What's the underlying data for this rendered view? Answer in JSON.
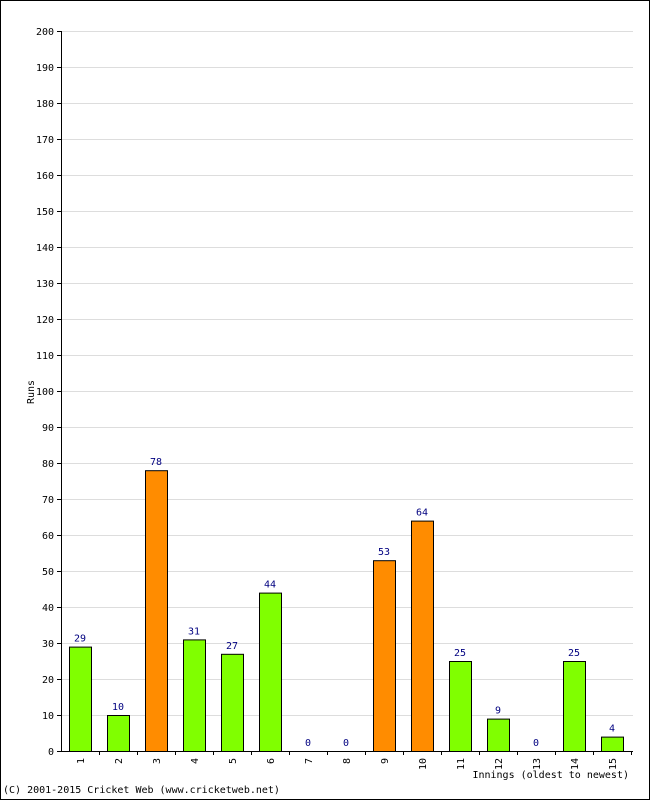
{
  "chart_data": {
    "type": "bar",
    "xlabel": "Innings (oldest to newest)",
    "ylabel": "Runs",
    "ylim": [
      0,
      200
    ],
    "ytick_step": 10,
    "categories": [
      "1",
      "2",
      "3",
      "4",
      "5",
      "6",
      "7",
      "8",
      "9",
      "10",
      "11",
      "12",
      "13",
      "14",
      "15"
    ],
    "values": [
      29,
      10,
      78,
      31,
      27,
      44,
      0,
      0,
      53,
      64,
      25,
      9,
      0,
      25,
      4
    ],
    "bar_colors": [
      "green",
      "green",
      "orange",
      "green",
      "green",
      "green",
      "green",
      "green",
      "orange",
      "orange",
      "green",
      "green",
      "green",
      "green",
      "green"
    ],
    "colors": {
      "green": "#80ff00",
      "orange": "#ff8c00",
      "value_label": "#000080",
      "grid": "#dddddd"
    },
    "grid": true
  },
  "footer": {
    "copyright": "(C) 2001-2015 Cricket Web (www.cricketweb.net)"
  }
}
